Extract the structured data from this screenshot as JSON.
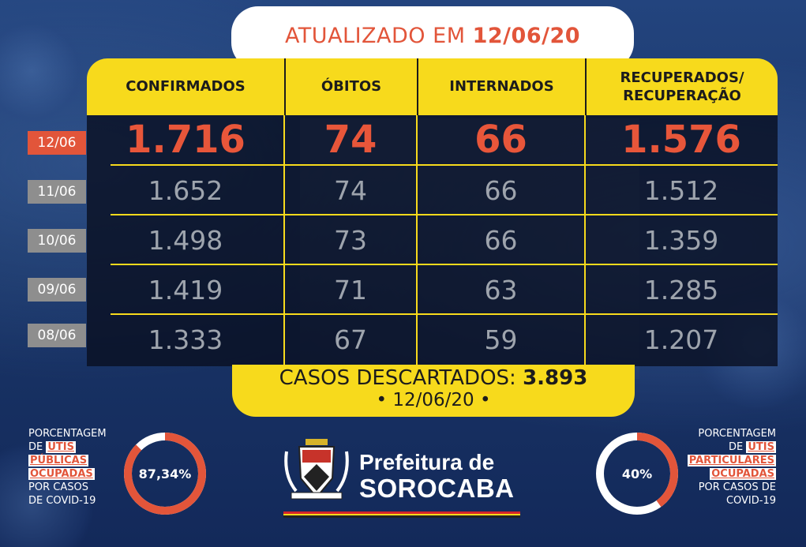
{
  "header": {
    "prefix": "ATUALIZADO EM",
    "date": "12/06/20"
  },
  "columns": [
    "CONFIRMADOS",
    "ÓBITOS",
    "INTERNADOS",
    "RECUPERADOS/\nRECUPERAÇÃO"
  ],
  "columns_display": {
    "c1": "CONFIRMADOS",
    "c2": "ÓBITOS",
    "c3": "INTERNADOS",
    "c4_line1": "RECUPERADOS/",
    "c4_line2": "RECUPERAÇÃO"
  },
  "rows": [
    {
      "date": "12/06",
      "confirmados": "1.716",
      "obitos": "74",
      "internados": "66",
      "recuperados": "1.576"
    },
    {
      "date": "11/06",
      "confirmados": "1.652",
      "obitos": "74",
      "internados": "66",
      "recuperados": "1.512"
    },
    {
      "date": "10/06",
      "confirmados": "1.498",
      "obitos": "73",
      "internados": "66",
      "recuperados": "1.359"
    },
    {
      "date": "09/06",
      "confirmados": "1.419",
      "obitos": "71",
      "internados": "63",
      "recuperados": "1.285"
    },
    {
      "date": "08/06",
      "confirmados": "1.333",
      "obitos": "67",
      "internados": "59",
      "recuperados": "1.207"
    }
  ],
  "descartados": {
    "label": "CASOS DESCARTADOS:",
    "value": "3.893",
    "date": "• 12/06/20 •"
  },
  "left_panel": {
    "line1": "PORCENTAGEM",
    "line2_pre": "DE",
    "line2_hl": "UTIS",
    "line3_hl": "PÚBLICAS",
    "line4_hl": "OCUPADAS",
    "line5": "POR CASOS",
    "line6": "DE COVID-19",
    "percent_label": "87,34%",
    "percent_value": 87.34
  },
  "right_panel": {
    "line1": "PORCENTAGEM",
    "line2_pre": "DE",
    "line2_hl": "UTIS",
    "line3_hl": "PARTICULARES",
    "line4_hl": "OCUPADAS",
    "line5": "POR CASOS DE",
    "line6": "COVID-19",
    "percent_label": "40%",
    "percent_value": 40
  },
  "brand": {
    "line1": "Prefeitura de",
    "line2": "SOROCABA"
  },
  "colors": {
    "accent_red": "#e2553a",
    "accent_yellow": "#f7da1c",
    "background_blue": "#1a3668",
    "gray_badge": "#8e8e8e"
  }
}
